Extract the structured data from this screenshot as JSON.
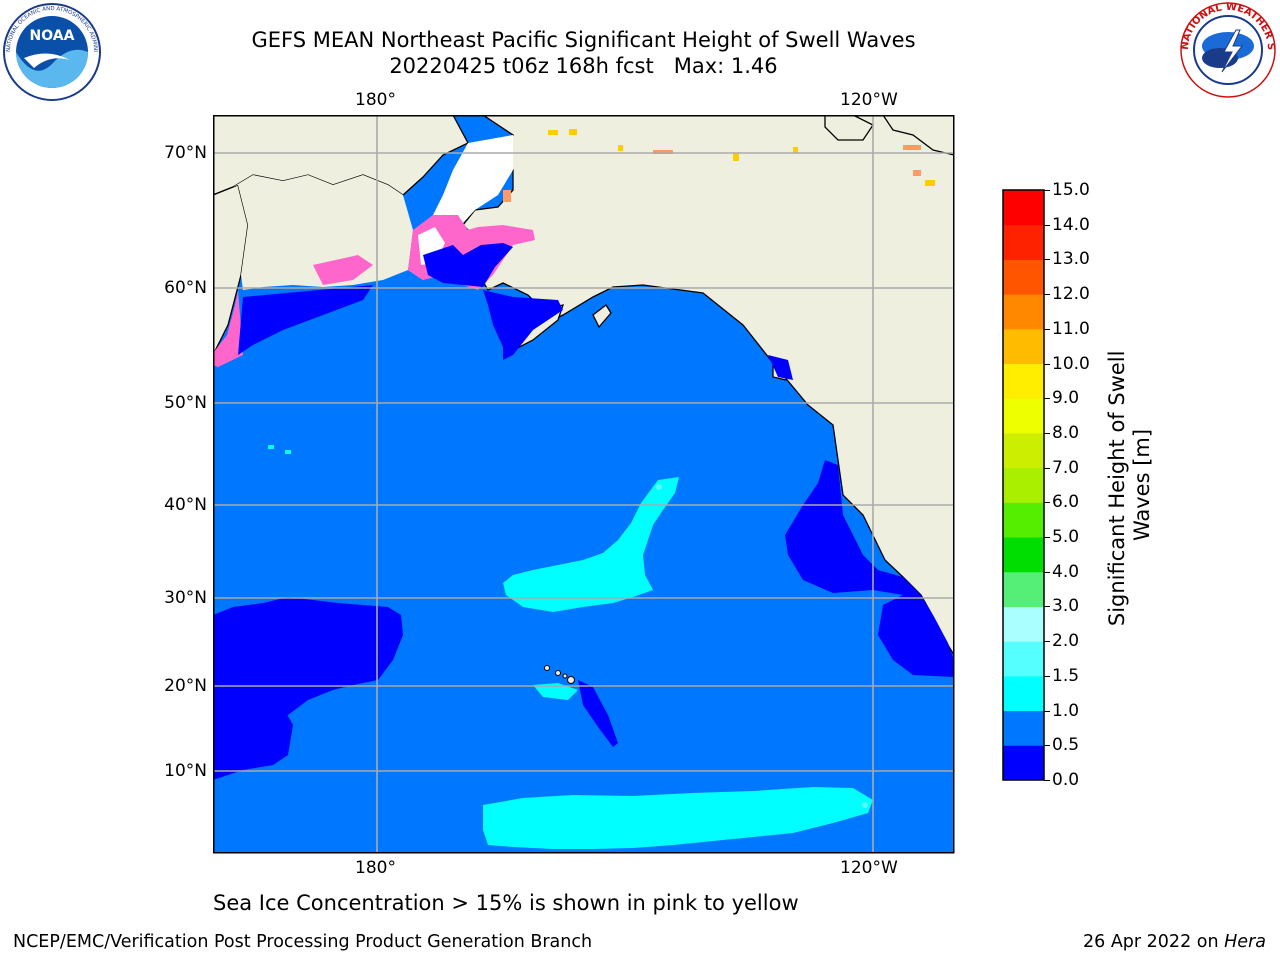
{
  "title": {
    "line1": "GEFS MEAN Northeast Pacific Significant Height of Swell Waves",
    "line2": "20220425 t06z 168h fcst   Max: 1.46"
  },
  "logos": {
    "noaa_text": "NOAA",
    "noaa_ring": "NATIONAL OCEANIC AND ATMOSPHERIC ADMINISTRATION · U.S. DEPARTMENT OF COMMERCE",
    "nws_ring": "NATIONAL WEATHER SERVICE"
  },
  "map": {
    "lon_ticks_top": [
      "180°",
      "120°W"
    ],
    "lon_ticks_bottom": [
      "180°",
      "120°W"
    ],
    "lat_ticks": [
      "70°N",
      "60°N",
      "50°N",
      "40°N",
      "30°N",
      "20°N",
      "10°N"
    ],
    "colors": {
      "land": "#efefdf",
      "ocean_0_5": "#0000ff",
      "ocean_0_5_1": "#0077ff",
      "ocean_1_1_5": "#00ffff",
      "ice": "#ff66cc",
      "grid": "#aaaaaa"
    }
  },
  "colorbar": {
    "label": "Significant Height of Swell Waves [m]",
    "ticks": [
      "15.0",
      "14.0",
      "13.0",
      "12.0",
      "11.0",
      "10.0",
      "9.0",
      "8.0",
      "7.0",
      "6.0",
      "5.0",
      "4.0",
      "3.0",
      "2.0",
      "1.5",
      "1.0",
      "0.5",
      "0.0"
    ],
    "colors": [
      "#0000ff",
      "#0077ff",
      "#00ffff",
      "#55ffff",
      "#aaffff",
      "#55ee77",
      "#00dd00",
      "#55ee00",
      "#aaee00",
      "#ccee00",
      "#eeff00",
      "#ffee00",
      "#ffbb00",
      "#ff8800",
      "#ff5500",
      "#ff2200",
      "#ff0000"
    ]
  },
  "note": "Sea Ice Concentration > 15% is shown in pink to yellow",
  "footer": {
    "left": "NCEP/EMC/Verification Post Processing Product Generation Branch",
    "right_prefix": "26 Apr 2022 on ",
    "right_italic": "Hera"
  }
}
